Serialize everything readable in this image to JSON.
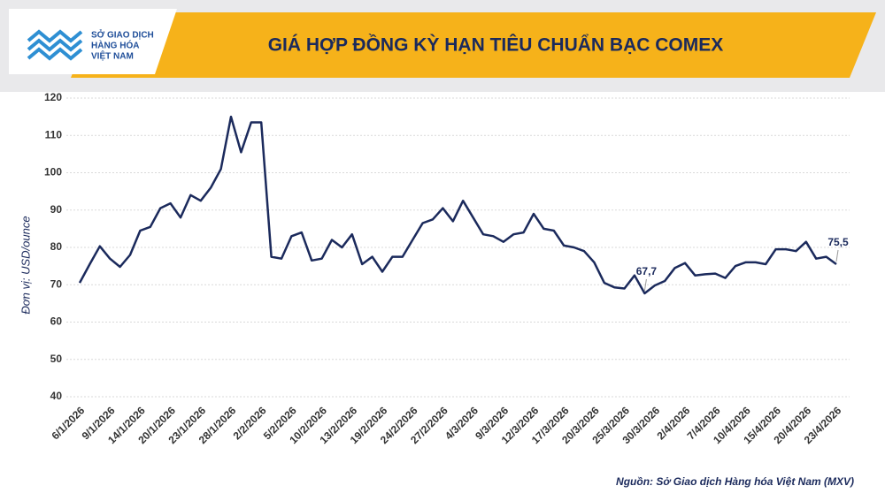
{
  "header": {
    "logo_lines": [
      "SỞ GIAO DỊCH",
      "HÀNG HÓA",
      "VIỆT NAM"
    ]
  },
  "chart_data": {
    "type": "line",
    "title": "GIÁ HỢP ĐỒNG KỲ HẠN TIÊU CHUẨN BẠC COMEX",
    "y_label": "Đơn vị: USD/ounce",
    "source": "Nguồn: Sở Giao dịch Hàng hóa Việt Nam (MXV)",
    "categories": [
      "6/1/2026",
      null,
      null,
      "9/1/2026",
      null,
      null,
      "14/1/2026",
      null,
      null,
      "20/1/2026",
      null,
      null,
      "23/1/2026",
      null,
      null,
      "28/1/2026",
      null,
      null,
      "2/2/2026",
      null,
      null,
      "5/2/2026",
      null,
      null,
      "10/2/2026",
      null,
      null,
      "13/2/2026",
      null,
      null,
      "19/2/2026",
      null,
      null,
      "24/2/2026",
      null,
      null,
      "27/2/2026",
      null,
      null,
      "4/3/2026",
      null,
      null,
      "9/3/2026",
      null,
      null,
      "12/3/2026",
      null,
      null,
      "17/3/2026",
      null,
      null,
      "20/3/2026",
      null,
      null,
      "25/3/2026",
      null,
      null,
      "30/3/2026",
      null,
      null,
      "2/4/2026",
      null,
      null,
      "7/4/2026",
      null,
      null,
      "10/4/2026",
      null,
      null,
      "15/4/2026",
      null,
      null,
      "20/4/2026",
      null,
      null,
      "23/4/2026"
    ],
    "series": [
      {
        "color": "#1b2a5c",
        "values": [
          70.5,
          75.5,
          80.3,
          77,
          74.8,
          78,
          84.5,
          85.5,
          90.5,
          91.8,
          88,
          94,
          92.5,
          96,
          101,
          115,
          105.5,
          113.5,
          113.5,
          77.5,
          77,
          83,
          84,
          76.5,
          77,
          82,
          80,
          83.5,
          75.5,
          77.5,
          73.5,
          77.5,
          77.5,
          82,
          86.5,
          87.5,
          90.5,
          87,
          92.5,
          88,
          83.5,
          83,
          81.5,
          83.5,
          84,
          89,
          85,
          84.5,
          80.5,
          80,
          79,
          76,
          70.5,
          69.3,
          69,
          72.5,
          67.7,
          69.8,
          71,
          74.5,
          75.8,
          72.5,
          72.8,
          73,
          71.8,
          75,
          76,
          76,
          75.5,
          79.5,
          79.5,
          79,
          81.5,
          77,
          77.5,
          75.5
        ],
        "value_labels": [
          null,
          null,
          null,
          null,
          null,
          null,
          null,
          null,
          null,
          null,
          null,
          null,
          null,
          null,
          null,
          null,
          null,
          null,
          null,
          null,
          null,
          null,
          null,
          null,
          null,
          null,
          null,
          null,
          null,
          null,
          null,
          null,
          null,
          null,
          null,
          null,
          null,
          null,
          null,
          null,
          null,
          null,
          null,
          null,
          null,
          null,
          null,
          null,
          null,
          null,
          null,
          null,
          null,
          null,
          null,
          null,
          "67,7",
          null,
          null,
          null,
          null,
          null,
          null,
          null,
          null,
          null,
          null,
          null,
          null,
          null,
          null,
          null,
          null,
          null,
          null,
          "75,5"
        ]
      }
    ],
    "ylim": [
      40,
      120
    ],
    "yticks": [
      40,
      50,
      60,
      70,
      80,
      90,
      100,
      110,
      120
    ],
    "grid": true
  }
}
